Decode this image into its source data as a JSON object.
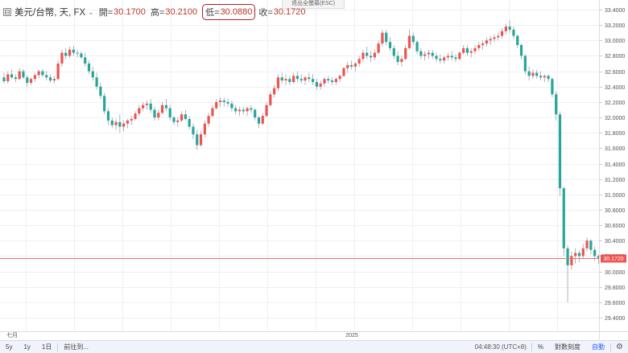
{
  "tooltip": {
    "esc_text": "退出全螢幕(ESC)"
  },
  "legend": {
    "collapse_icon": "⊟",
    "symbol": "美元/台幣, 天, FX",
    "options_icon": "⌄",
    "open_label": "開=",
    "open_value": "30.1700",
    "high_label": "高=",
    "high_value": "30.2100",
    "low_label": "低=",
    "low_value": "30.0880",
    "close_label": "收=",
    "close_value": "30.1720"
  },
  "bottom_bar": {
    "range_5y": "5y",
    "range_1y": "1y",
    "range_1d": "1日",
    "goto_label": "前往到...",
    "clock": "04:48:30 (UTC+8)",
    "percent_label": "%",
    "log_label": "對數刻度",
    "auto_label": "自動",
    "gear_icon": "gear-icon"
  },
  "chart_data": {
    "type": "candlestick",
    "title": "美元/台幣, 天, FX",
    "yaxis_ticks": [
      "33.4000",
      "33.2000",
      "33.0000",
      "32.8000",
      "32.6000",
      "32.4000",
      "32.2000",
      "32.0000",
      "31.8000",
      "31.6000",
      "31.4000",
      "31.2000",
      "31.0000",
      "30.8000",
      "30.6000",
      "30.4000",
      "30.2000",
      "30.0000",
      "29.8000",
      "29.6000",
      "29.4000"
    ],
    "ylim": [
      29.4,
      33.5
    ],
    "xaxis_labels": [
      "七月",
      "2025"
    ],
    "last_price": "30.1720",
    "grid": true,
    "colors": {
      "up": "#ef5350",
      "down": "#26a69a",
      "last_line": "#e57373",
      "grid": "#eef0f3"
    },
    "candles": [
      [
        32.52,
        32.58,
        32.44,
        32.47
      ],
      [
        32.47,
        32.6,
        32.44,
        32.56
      ],
      [
        32.56,
        32.62,
        32.5,
        32.52
      ],
      [
        32.52,
        32.56,
        32.46,
        32.5
      ],
      [
        32.5,
        32.64,
        32.48,
        32.6
      ],
      [
        32.6,
        32.63,
        32.5,
        32.52
      ],
      [
        32.52,
        32.55,
        32.4,
        32.45
      ],
      [
        32.45,
        32.52,
        32.42,
        32.5
      ],
      [
        32.5,
        32.58,
        32.46,
        32.55
      ],
      [
        32.55,
        32.62,
        32.51,
        32.6
      ],
      [
        32.6,
        32.63,
        32.52,
        32.55
      ],
      [
        32.55,
        32.6,
        32.48,
        32.52
      ],
      [
        32.52,
        32.56,
        32.45,
        32.48
      ],
      [
        32.48,
        32.54,
        32.44,
        32.5
      ],
      [
        32.5,
        32.74,
        32.48,
        32.7
      ],
      [
        32.7,
        32.88,
        32.66,
        32.84
      ],
      [
        32.84,
        32.9,
        32.76,
        32.8
      ],
      [
        32.8,
        32.92,
        32.77,
        32.88
      ],
      [
        32.88,
        32.93,
        32.8,
        32.84
      ],
      [
        32.84,
        32.88,
        32.78,
        32.83
      ],
      [
        32.83,
        32.86,
        32.76,
        32.78
      ],
      [
        32.78,
        32.84,
        32.66,
        32.7
      ],
      [
        32.7,
        32.74,
        32.56,
        32.6
      ],
      [
        32.6,
        32.66,
        32.48,
        32.52
      ],
      [
        32.52,
        32.58,
        32.36,
        32.4
      ],
      [
        32.4,
        32.45,
        32.24,
        32.28
      ],
      [
        32.28,
        32.32,
        32.04,
        32.08
      ],
      [
        32.08,
        32.12,
        31.9,
        31.96
      ],
      [
        31.96,
        32.0,
        31.86,
        31.9
      ],
      [
        31.9,
        31.98,
        31.84,
        31.94
      ],
      [
        31.94,
        32.04,
        31.8,
        31.88
      ],
      [
        31.88,
        31.96,
        31.82,
        31.92
      ],
      [
        31.92,
        31.98,
        31.86,
        31.96
      ],
      [
        31.96,
        32.02,
        31.9,
        31.98
      ],
      [
        31.98,
        32.08,
        31.96,
        32.05
      ],
      [
        32.05,
        32.16,
        32.02,
        32.12
      ],
      [
        32.12,
        32.2,
        32.08,
        32.16
      ],
      [
        32.16,
        32.22,
        32.1,
        32.18
      ],
      [
        32.18,
        32.24,
        32.06,
        32.1
      ],
      [
        32.1,
        32.14,
        31.96,
        32.0
      ],
      [
        32.0,
        32.1,
        31.96,
        32.06
      ],
      [
        32.06,
        32.2,
        32.04,
        32.16
      ],
      [
        32.16,
        32.24,
        32.08,
        32.12
      ],
      [
        32.12,
        32.16,
        31.96,
        32.0
      ],
      [
        32.0,
        32.02,
        31.9,
        31.94
      ],
      [
        31.94,
        32.0,
        31.88,
        31.96
      ],
      [
        31.96,
        32.08,
        31.94,
        32.04
      ],
      [
        32.04,
        32.1,
        31.96,
        31.98
      ],
      [
        31.98,
        32.02,
        31.84,
        31.88
      ],
      [
        31.88,
        31.92,
        31.72,
        31.78
      ],
      [
        31.78,
        31.84,
        31.58,
        31.64
      ],
      [
        31.64,
        31.82,
        31.62,
        31.78
      ],
      [
        31.78,
        31.96,
        31.74,
        31.92
      ],
      [
        31.92,
        32.06,
        31.88,
        32.02
      ],
      [
        32.02,
        32.16,
        32.0,
        32.12
      ],
      [
        32.12,
        32.24,
        32.1,
        32.2
      ],
      [
        32.2,
        32.26,
        32.14,
        32.22
      ],
      [
        32.22,
        32.26,
        32.14,
        32.2
      ],
      [
        32.2,
        32.25,
        32.14,
        32.18
      ],
      [
        32.18,
        32.22,
        32.08,
        32.12
      ],
      [
        32.12,
        32.16,
        32.04,
        32.08
      ],
      [
        32.08,
        32.14,
        32.02,
        32.1
      ],
      [
        32.1,
        32.14,
        32.04,
        32.08
      ],
      [
        32.08,
        32.14,
        32.02,
        32.12
      ],
      [
        32.12,
        32.16,
        32.06,
        32.1
      ],
      [
        32.1,
        32.12,
        31.96,
        32.0
      ],
      [
        32.0,
        32.02,
        31.86,
        31.92
      ],
      [
        31.92,
        32.06,
        31.9,
        32.02
      ],
      [
        32.02,
        32.2,
        32.0,
        32.16
      ],
      [
        32.16,
        32.34,
        32.14,
        32.3
      ],
      [
        32.3,
        32.42,
        32.26,
        32.38
      ],
      [
        32.38,
        32.56,
        32.34,
        32.52
      ],
      [
        32.52,
        32.58,
        32.44,
        32.48
      ],
      [
        32.48,
        32.56,
        32.42,
        32.5
      ],
      [
        32.5,
        32.54,
        32.42,
        32.46
      ],
      [
        32.46,
        32.58,
        32.44,
        32.54
      ],
      [
        32.54,
        32.6,
        32.46,
        32.5
      ],
      [
        32.5,
        32.56,
        32.44,
        32.48
      ],
      [
        32.48,
        32.54,
        32.42,
        32.52
      ],
      [
        32.52,
        32.58,
        32.46,
        32.5
      ],
      [
        32.5,
        32.56,
        32.42,
        32.46
      ],
      [
        32.46,
        32.5,
        32.36,
        32.4
      ],
      [
        32.4,
        32.48,
        32.36,
        32.44
      ],
      [
        32.44,
        32.52,
        32.4,
        32.5
      ],
      [
        32.5,
        32.54,
        32.44,
        32.48
      ],
      [
        32.48,
        32.52,
        32.42,
        32.46
      ],
      [
        32.46,
        32.52,
        32.42,
        32.5
      ],
      [
        32.5,
        32.56,
        32.46,
        32.54
      ],
      [
        32.54,
        32.66,
        32.52,
        32.64
      ],
      [
        32.64,
        32.72,
        32.58,
        32.68
      ],
      [
        32.68,
        32.74,
        32.62,
        32.66
      ],
      [
        32.66,
        32.72,
        32.6,
        32.7
      ],
      [
        32.7,
        32.8,
        32.66,
        32.76
      ],
      [
        32.76,
        32.88,
        32.72,
        32.84
      ],
      [
        32.84,
        32.92,
        32.76,
        32.8
      ],
      [
        32.8,
        32.86,
        32.72,
        32.78
      ],
      [
        32.78,
        32.88,
        32.74,
        32.84
      ],
      [
        32.84,
        33.0,
        32.82,
        32.96
      ],
      [
        32.96,
        33.14,
        32.92,
        33.1
      ],
      [
        33.1,
        33.14,
        32.94,
        32.98
      ],
      [
        32.98,
        33.04,
        32.86,
        32.9
      ],
      [
        32.9,
        32.94,
        32.76,
        32.8
      ],
      [
        32.8,
        32.86,
        32.68,
        32.72
      ],
      [
        32.72,
        32.8,
        32.66,
        32.76
      ],
      [
        32.76,
        32.94,
        32.74,
        32.9
      ],
      [
        32.9,
        33.14,
        32.88,
        33.06
      ],
      [
        33.06,
        33.1,
        32.94,
        32.98
      ],
      [
        32.98,
        33.0,
        32.82,
        32.86
      ],
      [
        32.86,
        32.9,
        32.76,
        32.8
      ],
      [
        32.8,
        32.86,
        32.74,
        32.82
      ],
      [
        32.82,
        32.88,
        32.76,
        32.84
      ],
      [
        32.84,
        32.88,
        32.76,
        32.8
      ],
      [
        32.8,
        32.84,
        32.72,
        32.76
      ],
      [
        32.76,
        32.82,
        32.7,
        32.74
      ],
      [
        32.74,
        32.8,
        32.7,
        32.78
      ],
      [
        32.78,
        32.84,
        32.74,
        32.8
      ],
      [
        32.8,
        32.86,
        32.74,
        32.78
      ],
      [
        32.78,
        32.82,
        32.72,
        32.76
      ],
      [
        32.76,
        32.86,
        32.74,
        32.84
      ],
      [
        32.84,
        32.94,
        32.82,
        32.9
      ],
      [
        32.9,
        32.94,
        32.8,
        32.84
      ],
      [
        32.84,
        32.9,
        32.78,
        32.86
      ],
      [
        32.86,
        32.94,
        32.82,
        32.9
      ],
      [
        32.9,
        32.98,
        32.86,
        32.94
      ],
      [
        32.94,
        33.0,
        32.88,
        32.96
      ],
      [
        32.96,
        33.04,
        32.92,
        33.0
      ],
      [
        33.0,
        33.06,
        32.94,
        33.02
      ],
      [
        33.02,
        33.08,
        32.98,
        33.04
      ],
      [
        33.04,
        33.1,
        33.0,
        33.06
      ],
      [
        33.06,
        33.16,
        33.02,
        33.12
      ],
      [
        33.12,
        33.22,
        33.08,
        33.18
      ],
      [
        33.18,
        33.26,
        33.1,
        33.14
      ],
      [
        33.14,
        33.18,
        33.02,
        33.06
      ],
      [
        33.06,
        33.08,
        32.9,
        32.94
      ],
      [
        32.94,
        32.96,
        32.76,
        32.8
      ],
      [
        32.8,
        32.82,
        32.56,
        32.6
      ],
      [
        32.6,
        32.66,
        32.48,
        32.54
      ],
      [
        32.54,
        32.62,
        32.5,
        32.58
      ],
      [
        32.58,
        32.62,
        32.5,
        32.54
      ],
      [
        32.54,
        32.6,
        32.48,
        32.52
      ],
      [
        32.52,
        32.56,
        32.46,
        32.54
      ],
      [
        32.54,
        32.56,
        32.46,
        32.5
      ],
      [
        32.5,
        32.52,
        32.26,
        32.3
      ],
      [
        32.3,
        32.34,
        31.96,
        32.04
      ],
      [
        32.04,
        32.08,
        30.98,
        31.08
      ],
      [
        31.08,
        31.1,
        30.2,
        30.3
      ],
      [
        30.3,
        30.34,
        29.6,
        30.08
      ],
      [
        30.08,
        30.26,
        30.02,
        30.2
      ],
      [
        30.2,
        30.3,
        30.1,
        30.24
      ],
      [
        30.24,
        30.28,
        30.12,
        30.2
      ],
      [
        30.2,
        30.36,
        30.16,
        30.3
      ],
      [
        30.3,
        30.44,
        30.26,
        30.4
      ],
      [
        30.4,
        30.42,
        30.22,
        30.28
      ],
      [
        30.28,
        30.32,
        30.14,
        30.2
      ],
      [
        30.2,
        30.22,
        30.1,
        30.17
      ]
    ]
  }
}
